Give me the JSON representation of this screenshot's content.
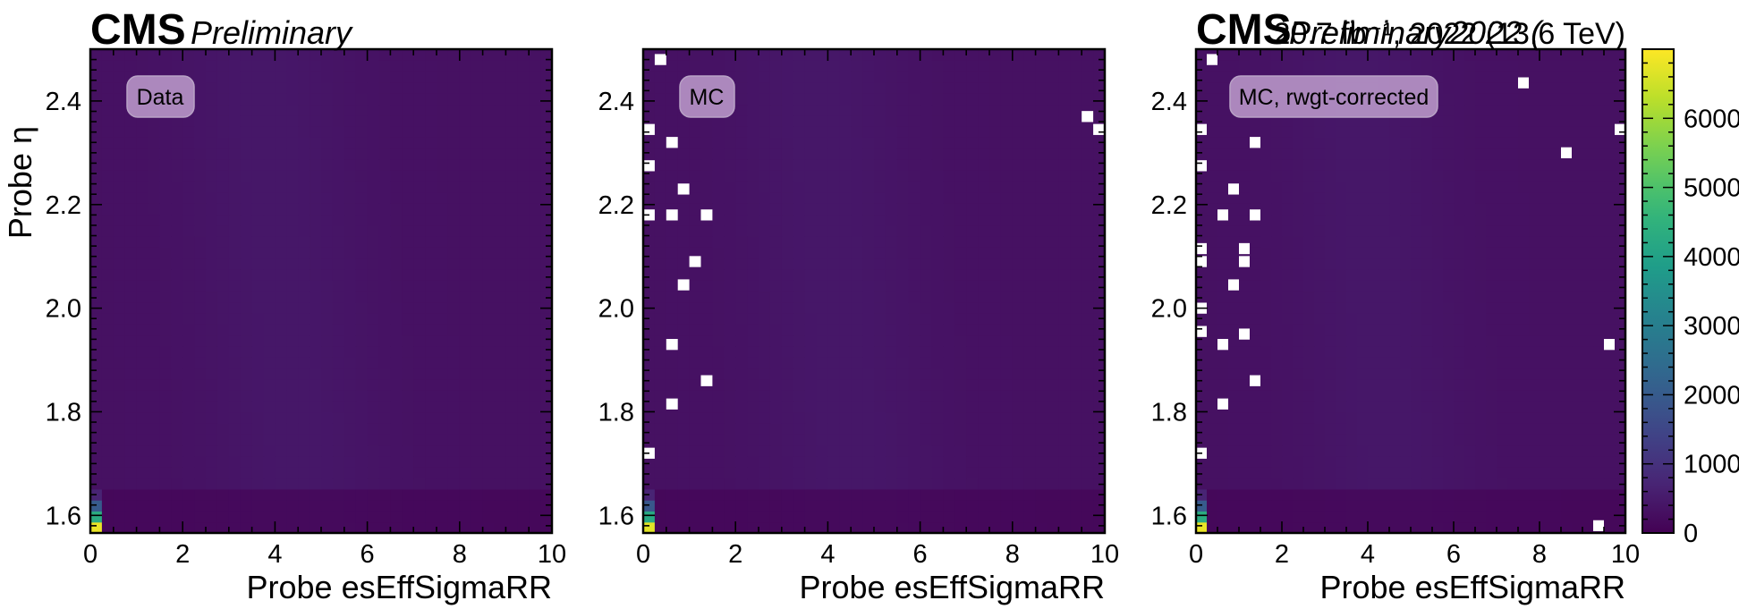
{
  "colors": {
    "viridis": [
      "#440154",
      "#482878",
      "#3e4989",
      "#31688e",
      "#26828e",
      "#1f9e89",
      "#35b779",
      "#6ece58",
      "#b5de2b",
      "#fde725"
    ],
    "badge_fill": "#c9a9d6",
    "axes": "#000000"
  },
  "chart_data": [
    {
      "type": "heatmap",
      "label_box": "Data",
      "xlabel": "Probe esEffSigmaRR",
      "ylabel": "Probe η",
      "xlim": [
        0,
        10
      ],
      "ylim": [
        1.566,
        2.5
      ],
      "x_ticks": [
        "0",
        "2",
        "4",
        "6",
        "8",
        "10"
      ],
      "y_ticks": [
        "1.6",
        "1.8",
        "2.0",
        "2.2",
        "2.4"
      ],
      "header": {
        "cms": "CMS",
        "tag": "Preliminary"
      },
      "empty_bins": [],
      "edge_counts": [
        6800,
        4300,
        2000,
        700
      ]
    },
    {
      "type": "heatmap",
      "label_box": "MC",
      "xlabel": "Probe esEffSigmaRR",
      "ylabel": "",
      "xlim": [
        0,
        10
      ],
      "ylim": [
        1.566,
        2.5
      ],
      "x_ticks": [
        "0",
        "2",
        "4",
        "6",
        "8",
        "10"
      ],
      "y_ticks": [
        "1.6",
        "1.8",
        "2.0",
        "2.2",
        "2.4"
      ],
      "empty_bins": [
        [
          0.375,
          2.48
        ],
        [
          0.125,
          2.345
        ],
        [
          0.625,
          2.32
        ],
        [
          0.125,
          2.275
        ],
        [
          0.875,
          2.23
        ],
        [
          0.125,
          2.18
        ],
        [
          0.625,
          2.18
        ],
        [
          1.375,
          2.18
        ],
        [
          1.125,
          2.09
        ],
        [
          0.875,
          2.045
        ],
        [
          0.625,
          1.93
        ],
        [
          1.375,
          1.86
        ],
        [
          0.625,
          1.815
        ],
        [
          0.125,
          1.72
        ],
        [
          9.625,
          2.37
        ],
        [
          9.875,
          2.345
        ]
      ],
      "edge_counts": [
        6700,
        4200,
        1900,
        700
      ]
    },
    {
      "type": "heatmap",
      "label_box": "MC, rwgt-corrected",
      "xlabel": "Probe esEffSigmaRR",
      "ylabel": "",
      "xlim": [
        0,
        10
      ],
      "ylim": [
        1.566,
        2.5
      ],
      "x_ticks": [
        "0",
        "2",
        "4",
        "6",
        "8",
        "10"
      ],
      "y_ticks": [
        "1.6",
        "1.8",
        "2.0",
        "2.2",
        "2.4"
      ],
      "header": {
        "cms": "CMS",
        "tag": "Preliminary",
        "overlap": "Preliminary2022 (",
        "lumi": "20.7 fb⁻¹, 2022 (13.6 TeV)"
      },
      "empty_bins": [
        [
          0.375,
          2.48
        ],
        [
          0.125,
          2.345
        ],
        [
          1.375,
          2.32
        ],
        [
          0.125,
          2.275
        ],
        [
          0.875,
          2.23
        ],
        [
          0.625,
          2.18
        ],
        [
          1.375,
          2.18
        ],
        [
          0.125,
          2.115
        ],
        [
          1.125,
          2.115
        ],
        [
          0.125,
          2.09
        ],
        [
          1.125,
          2.09
        ],
        [
          0.875,
          2.045
        ],
        [
          0.125,
          2.0
        ],
        [
          0.125,
          1.955
        ],
        [
          1.125,
          1.95
        ],
        [
          0.625,
          1.93
        ],
        [
          1.375,
          1.86
        ],
        [
          0.625,
          1.815
        ],
        [
          0.125,
          1.72
        ],
        [
          7.625,
          2.435
        ],
        [
          8.625,
          2.3
        ],
        [
          9.875,
          2.345
        ],
        [
          9.625,
          1.93
        ],
        [
          9.375,
          1.58
        ]
      ],
      "edge_counts": [
        6800,
        4300,
        2000,
        700
      ]
    }
  ],
  "colorbar": {
    "range": [
      0,
      7000
    ],
    "ticks": [
      "0",
      "1000",
      "2000",
      "3000",
      "4000",
      "5000",
      "6000"
    ],
    "tick_values": [
      0,
      1000,
      2000,
      3000,
      4000,
      5000,
      6000
    ]
  }
}
